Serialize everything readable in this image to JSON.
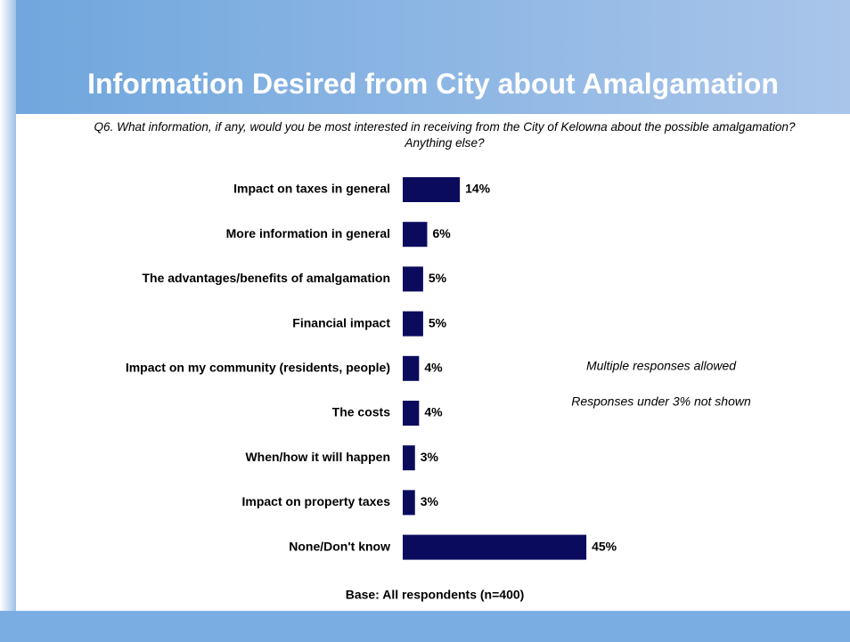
{
  "chart_data": {
    "type": "bar",
    "orientation": "horizontal",
    "title": "Information Desired from City about Amalgamation",
    "subtitle": "Q6. What information, if any, would you be most interested in receiving from the City of Kelowna about the possible amalgamation? Anything else?",
    "categories": [
      "Impact on taxes in general",
      "More information in general",
      "The advantages/benefits of amalgamation",
      "Financial impact",
      "Impact on my community (residents, people)",
      "The costs",
      "When/how it will happen",
      "Impact on property taxes",
      "None/Don't know"
    ],
    "values": [
      14,
      6,
      5,
      5,
      4,
      4,
      3,
      3,
      45
    ],
    "value_labels": [
      "14%",
      "6%",
      "5%",
      "5%",
      "4%",
      "4%",
      "3%",
      "3%",
      "45%"
    ],
    "color": "#0b0b5e",
    "annotations": [
      "Multiple responses allowed",
      "Responses under 3% not shown"
    ],
    "footnote": "Base: All respondents (n=400)"
  }
}
